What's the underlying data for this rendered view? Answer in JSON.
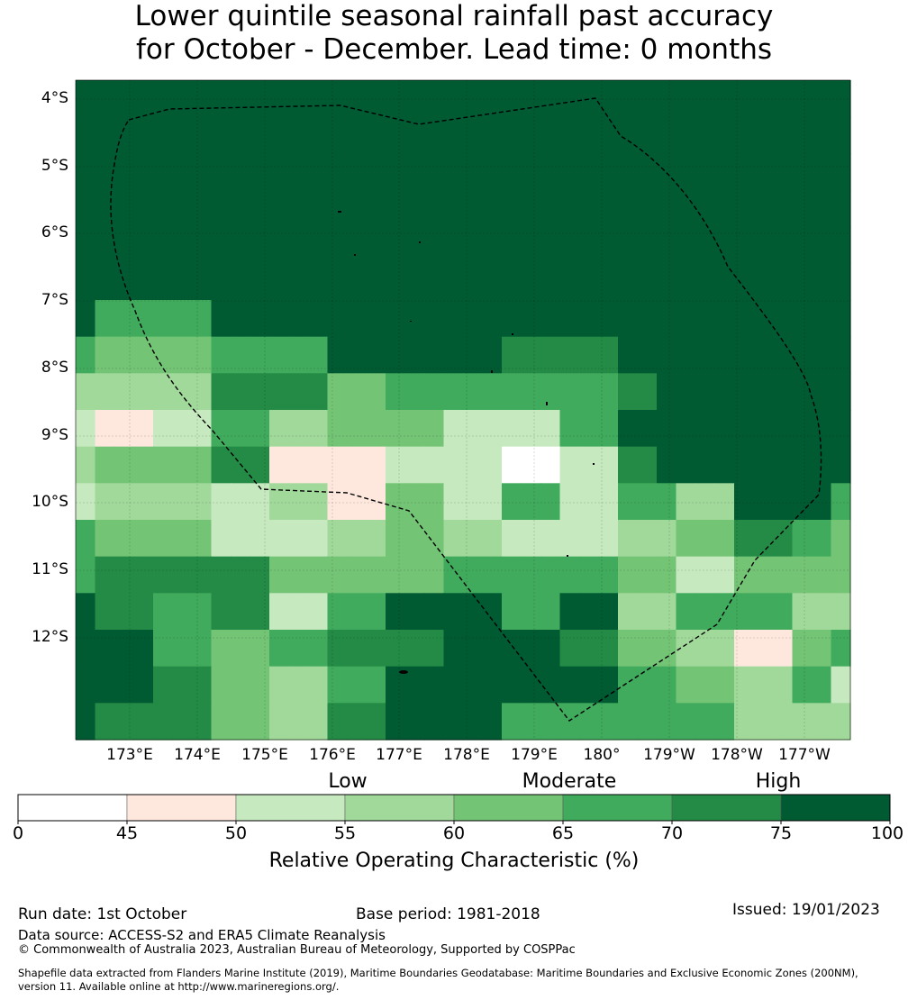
{
  "title_line1": "Lower quintile seasonal rainfall past accuracy",
  "title_line2": "for October - December. Lead time: 0 months",
  "lat_labels": [
    "4°S",
    "5°S",
    "6°S",
    "7°S",
    "8°S",
    "9°S",
    "10°S",
    "11°S",
    "12°S"
  ],
  "lon_labels": [
    "173°E",
    "174°E",
    "175°E",
    "176°E",
    "177°E",
    "178°E",
    "179°E",
    "180°",
    "179°W",
    "178°W",
    "177°W"
  ],
  "colorbar": {
    "categories": [
      "Low",
      "Moderate",
      "High"
    ],
    "ticks": [
      "0",
      "45",
      "50",
      "55",
      "60",
      "65",
      "70",
      "75",
      "100"
    ],
    "label": "Relative Operating Characteristic (%)",
    "colors": [
      "#ffffff",
      "#fee8de",
      "#c7e9c0",
      "#a1d99b",
      "#74c476",
      "#41ab5d",
      "#238b45",
      "#005a32"
    ]
  },
  "grid_classes": [
    "7777777777777777777777777777777777777777",
    "7777777777777777777777777777777777777777",
    "7777777777777777777777777777777777777777",
    "7777777777777777777777777777777777777777",
    "7777777777777777777777777777777777777777",
    "7777777777777777777777777777777777777777",
    "7555555777777777777777777777777777777777",
    "5444444555555777777777666666777777777777",
    "3333333666666444555555555555667777777777",
    "2111222555333444444222222555777777777777",
    "3444444666111111222222000222667777777777",
    "2333333222333111444222555222555333777775",
    "5444444222222333444333222222333444666554",
    "5666666666444444444555555555444222444444",
    "7666555666222555777777555777333555555333",
    "7777555444555666666777777666444333111445",
    "7777666444333555777777777777555444333552",
    "7666666444333666777777555555555555333333"
  ],
  "footer": {
    "run_date": "Run date: 1st October",
    "base_period": "Base period: 1981-2018",
    "issued": "Issued: 19/01/2023",
    "data_source": "Data source: ACCESS-S2 and ERA5 Climate Reanalysis",
    "copyright": "© Commonwealth of Australia 2023, Australian Bureau of Meteorology, Supported by COSPPac",
    "shapefile_line1": "Shapefile data extracted from Flanders Marine Institute (2019), Maritime Boundaries Geodatabase: Maritime Boundaries and Exclusive Economic Zones (200NM),",
    "shapefile_line2": "version 11. Available online at http://www.marineregions.org/."
  }
}
